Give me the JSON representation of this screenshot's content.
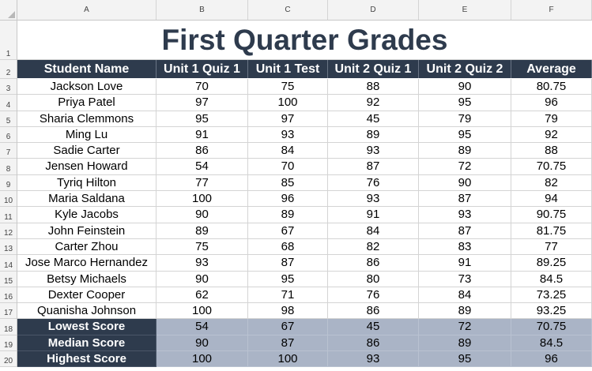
{
  "spreadsheet": {
    "column_letters": [
      "A",
      "B",
      "C",
      "D",
      "E",
      "F"
    ],
    "row_numbers": [
      "1",
      "2",
      "3",
      "4",
      "5",
      "6",
      "7",
      "8",
      "9",
      "10",
      "11",
      "12",
      "13",
      "14",
      "15",
      "16",
      "17",
      "18",
      "19",
      "20"
    ],
    "title": "First Quarter Grades",
    "headers": [
      "Student Name",
      "Unit 1 Quiz 1",
      "Unit 1 Test",
      "Unit 2 Quiz 1",
      "Unit 2 Quiz 2",
      "Average"
    ],
    "students": [
      [
        "Jackson Love",
        "70",
        "75",
        "88",
        "90",
        "80.75"
      ],
      [
        "Priya Patel",
        "97",
        "100",
        "92",
        "95",
        "96"
      ],
      [
        "Sharia Clemmons",
        "95",
        "97",
        "45",
        "79",
        "79"
      ],
      [
        "Ming Lu",
        "91",
        "93",
        "89",
        "95",
        "92"
      ],
      [
        "Sadie Carter",
        "86",
        "84",
        "93",
        "89",
        "88"
      ],
      [
        "Jensen Howard",
        "54",
        "70",
        "87",
        "72",
        "70.75"
      ],
      [
        "Tyriq Hilton",
        "77",
        "85",
        "76",
        "90",
        "82"
      ],
      [
        "Maria Saldana",
        "100",
        "96",
        "93",
        "87",
        "94"
      ],
      [
        "Kyle Jacobs",
        "90",
        "89",
        "91",
        "93",
        "90.75"
      ],
      [
        "John Feinstein",
        "89",
        "67",
        "84",
        "87",
        "81.75"
      ],
      [
        "Carter Zhou",
        "75",
        "68",
        "82",
        "83",
        "77"
      ],
      [
        "Jose Marco Hernandez",
        "93",
        "87",
        "86",
        "91",
        "89.25"
      ],
      [
        "Betsy Michaels",
        "90",
        "95",
        "80",
        "73",
        "84.5"
      ],
      [
        "Dexter Cooper",
        "62",
        "71",
        "76",
        "84",
        "73.25"
      ],
      [
        "Quanisha Johnson",
        "100",
        "98",
        "86",
        "89",
        "93.25"
      ]
    ],
    "summary": [
      [
        "Lowest Score",
        "54",
        "67",
        "45",
        "72",
        "70.75"
      ],
      [
        "Median Score",
        "90",
        "87",
        "86",
        "89",
        "84.5"
      ],
      [
        "Highest Score",
        "100",
        "100",
        "93",
        "95",
        "96"
      ]
    ],
    "colors": {
      "header_bg": "#2e3b4d",
      "summary_bg": "#aab4c6",
      "title_text": "#2e3b4d"
    }
  }
}
